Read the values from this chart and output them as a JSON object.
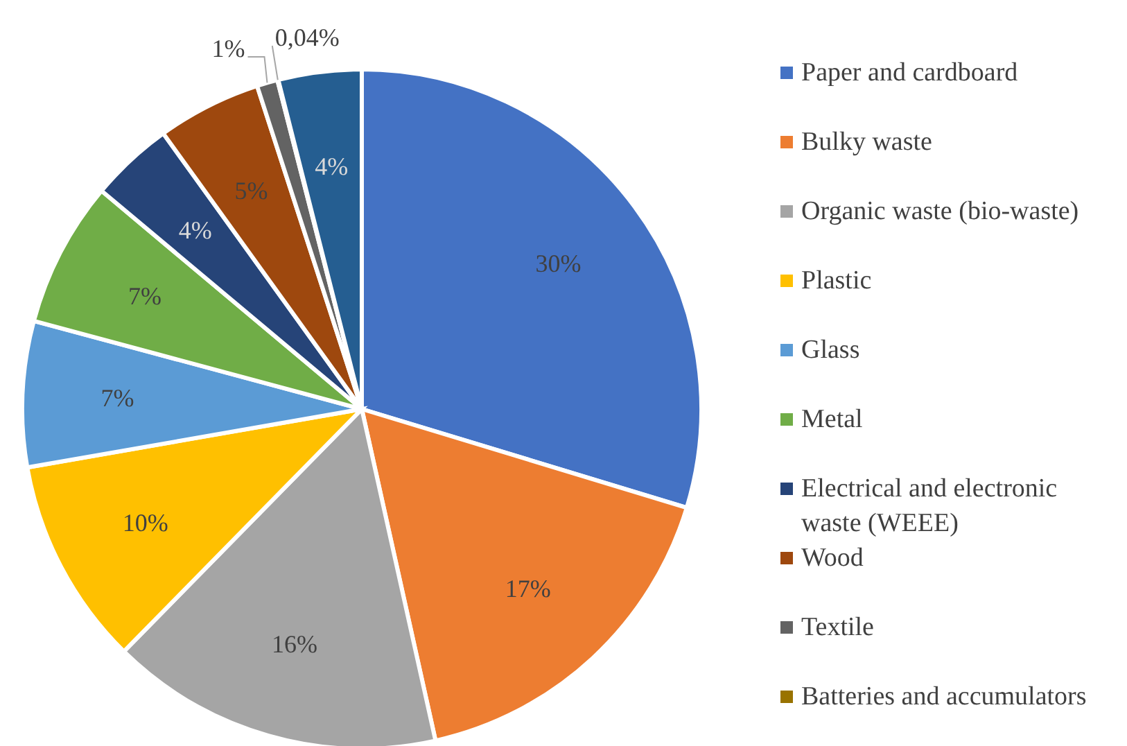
{
  "chart_data": {
    "type": "pie",
    "categories": [
      "Paper and cardboard",
      "Bulky waste",
      "Organic waste (bio-waste)",
      "Plastic",
      "Glass",
      "Metal",
      "Electrical and electronic waste (WEEE)",
      "Wood",
      "Textile",
      "Batteries and accumulators",
      null
    ],
    "values": [
      30,
      17,
      16,
      10,
      7,
      7,
      4,
      5,
      1,
      0.04,
      4
    ],
    "colors": [
      "#4472c4",
      "#ed7d31",
      "#a5a5a5",
      "#ffc000",
      "#5b9bd5",
      "#70ad47",
      "#264478",
      "#9e480e",
      "#636363",
      "#997300",
      "#255e91"
    ],
    "value_labels": [
      "30%",
      "17%",
      "16%",
      "10%",
      "7%",
      "7%",
      "4%",
      "5%",
      "1%",
      "0,04%",
      "4%"
    ],
    "legend": "right"
  }
}
